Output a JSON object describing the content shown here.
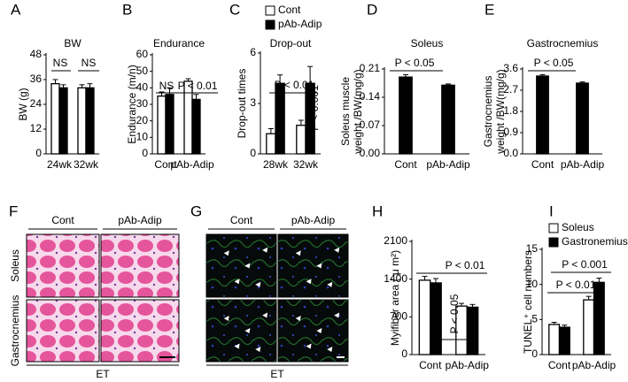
{
  "chart_data": [
    {
      "type": "bar",
      "panel_label": "A",
      "title": "BW",
      "y_label": [
        "BW (g)"
      ],
      "categories": [
        "24wk",
        "32wk"
      ],
      "series": [
        {
          "color": "#ffffff",
          "values": [
            34,
            32
          ],
          "errors": [
            2,
            1.5
          ]
        },
        {
          "color": "#000000",
          "values": [
            32,
            32
          ],
          "errors": [
            1.5,
            2
          ]
        }
      ],
      "ylim": [
        0,
        48
      ],
      "yticks": [
        0,
        12,
        24,
        36,
        48
      ],
      "annotations": [
        "NS",
        "NS"
      ]
    },
    {
      "type": "bar",
      "panel_label": "B",
      "title": "Endurance",
      "y_label": [
        "Endurance (m/n)"
      ],
      "categories": [
        "Cont",
        "pAb-Adip"
      ],
      "series": [
        {
          "color": "#ffffff",
          "values": [
            35,
            44
          ],
          "errors": [
            2.5,
            1.5
          ]
        },
        {
          "color": "#000000",
          "values": [
            36,
            33
          ],
          "errors": [
            4,
            3
          ]
        }
      ],
      "ylim": [
        0,
        60
      ],
      "yticks": [
        0,
        10,
        20,
        30,
        40,
        50,
        60
      ],
      "annotations": [
        "NS",
        "P < 0.01"
      ]
    },
    {
      "type": "bar",
      "panel_label": "C",
      "title": "Drop-out",
      "y_label": [
        "Drop-out times"
      ],
      "categories": [
        "28wk",
        "32wk"
      ],
      "series": [
        {
          "name": "Cont",
          "color": "#ffffff",
          "values": [
            1.2,
            1.7
          ],
          "errors": [
            0.3,
            0.3
          ]
        },
        {
          "name": "pAb-Adip",
          "color": "#000000",
          "values": [
            4.2,
            4.2
          ],
          "errors": [
            0.5,
            1.0
          ]
        }
      ],
      "ylim": [
        0,
        6
      ],
      "yticks": [
        0,
        3,
        6
      ],
      "annotations": [
        "P < 0.01",
        "P < 0.001"
      ]
    },
    {
      "type": "bar",
      "panel_label": "D",
      "title": "Soleus",
      "y_label": [
        "Soleus muscle",
        "weight /BW(mg/g)"
      ],
      "categories": [
        "Cont",
        "pAb-Adip"
      ],
      "series": [
        {
          "color": "#000000",
          "values": [
            0.19,
            0.17
          ],
          "errors": [
            0.006,
            0.003
          ]
        }
      ],
      "ylim": [
        0,
        0.21
      ],
      "yticks": [
        {
          "value": 0,
          "label": "0.00"
        },
        0.07,
        0.14,
        0.21
      ],
      "annotations": [
        "P < 0.05"
      ]
    },
    {
      "type": "bar",
      "panel_label": "E",
      "title": "Gastrocnemius",
      "y_label": [
        "Gastrocnemius",
        "weight /BW(mg/g)"
      ],
      "categories": [
        "Cont",
        "pAb-Adip"
      ],
      "series": [
        {
          "color": "#000000",
          "values": [
            3.3,
            3.0
          ],
          "errors": [
            0.06,
            0.05
          ]
        }
      ],
      "ylim": [
        0,
        3.6
      ],
      "yticks": [
        {
          "value": 0,
          "label": "0.0"
        },
        0.9,
        1.8,
        2.7,
        3.6
      ],
      "annotations": [
        "P < 0.05"
      ]
    },
    {
      "type": "bar",
      "panel_label": "H",
      "y_label": [
        "Myifiber area ( μ m²)"
      ],
      "categories": [
        "Cont",
        "pAb-Adip"
      ],
      "series": [
        {
          "color": "#ffffff",
          "values": [
            1380,
            900
          ],
          "errors": [
            70,
            50
          ]
        },
        {
          "color": "#000000",
          "values": [
            1330,
            880
          ],
          "errors": [
            80,
            50
          ]
        }
      ],
      "ylim": [
        0,
        2100
      ],
      "yticks": [
        0,
        700,
        1400,
        2100
      ],
      "annotations": [
        "P < 0.01",
        "P < 0.05"
      ]
    },
    {
      "type": "bar",
      "panel_label": "I",
      "y_label": [
        "TUNEL⁺ cell numbers"
      ],
      "categories": [
        "Cont",
        "pAb-Adip"
      ],
      "series": [
        {
          "name": "Soleus",
          "color": "#ffffff",
          "values": [
            4.3,
            7.8
          ],
          "errors": [
            0.3,
            0.5
          ]
        },
        {
          "name": "Gastronemius",
          "color": "#000000",
          "values": [
            3.9,
            10.3
          ],
          "errors": [
            0.3,
            0.6
          ]
        }
      ],
      "ylim": [
        0,
        15
      ],
      "yticks": [
        0,
        5,
        10,
        15
      ],
      "annotations": [
        "P < 0.01",
        "P < 0.001"
      ]
    }
  ],
  "images": [
    {
      "panel_label": "F",
      "columns": [
        "Cont",
        "pAb-Adip"
      ],
      "rows": [
        "Soleus",
        "Gastrocnemius"
      ],
      "footer": "ET"
    },
    {
      "panel_label": "G",
      "columns": [
        "Cont",
        "pAb-Adip"
      ],
      "footer": "ET"
    }
  ]
}
